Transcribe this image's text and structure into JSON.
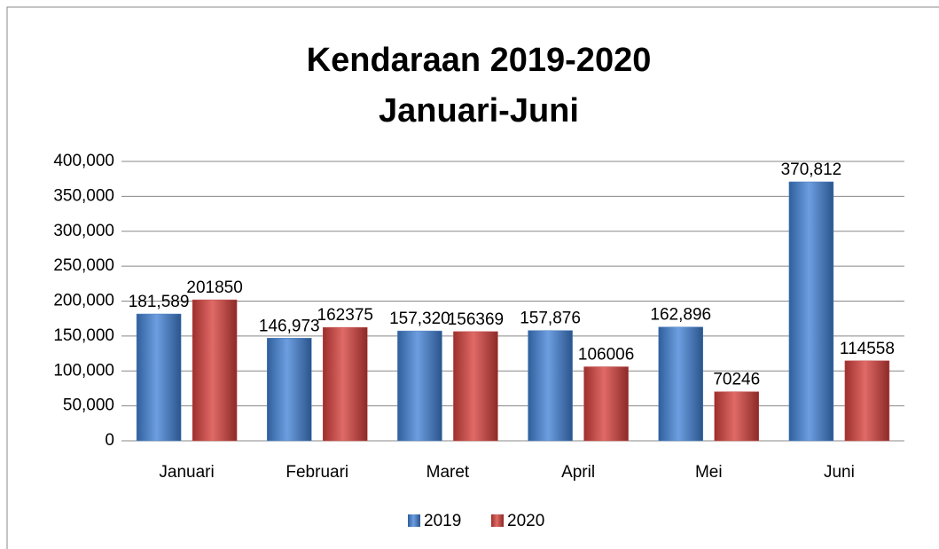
{
  "chart_data": {
    "type": "bar",
    "title": "Kendaraan 2019-2020",
    "subtitle": "Januari-Juni",
    "categories": [
      "Januari",
      "Februari",
      "Maret",
      "April",
      "Mei",
      "Juni"
    ],
    "series": [
      {
        "name": "2019",
        "color": "#4f81bd",
        "values": [
          181589,
          146973,
          157320,
          157876,
          162896,
          370812
        ],
        "value_labels": [
          "181,589",
          "146,973",
          "157,320",
          "157,876",
          "162,896",
          "370,812"
        ]
      },
      {
        "name": "2020",
        "color": "#c0504d",
        "values": [
          201850,
          162375,
          156369,
          106006,
          70246,
          114558
        ]
      }
    ],
    "ylim": [
      0,
      400000
    ],
    "yticks": [
      0,
      {
        "value": 50000,
        "label": "50,000"
      },
      {
        "value": 100000,
        "label": "100,000"
      },
      {
        "value": 150000,
        "label": "150,000"
      },
      {
        "value": 200000,
        "label": "200,000"
      },
      {
        "value": 250000,
        "label": "250,000"
      },
      {
        "value": 300000,
        "label": "300,000"
      },
      {
        "value": 350000,
        "label": "350,000"
      },
      {
        "value": 400000,
        "label": "400,000"
      }
    ],
    "grid": true,
    "legend": "bottom"
  }
}
